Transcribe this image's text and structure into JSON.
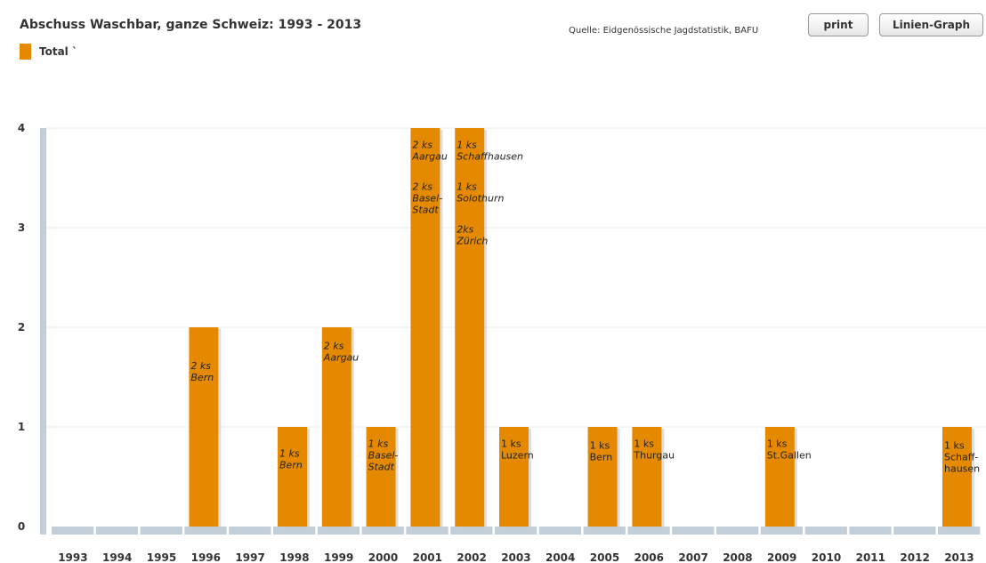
{
  "header": {
    "title": "Abschuss Waschbar, ganze Schweiz: 1993 - 2013",
    "source": "Quelle: Eidgenössische Jagdstatistik, BAFU",
    "print_label": "print",
    "graph_label": "Linien-Graph"
  },
  "chart_data": {
    "type": "bar",
    "title": "Abschuss Waschbar, ganze Schweiz: 1993 - 2013",
    "xlabel": "",
    "ylabel": "",
    "ylim": [
      0,
      4
    ],
    "y_ticks": [
      "0",
      "1",
      "2",
      "3",
      "4"
    ],
    "grid": true,
    "legend": "top-left",
    "bar_color": "#e58a00",
    "axis_color": "#c2cfd9",
    "categories": [
      "1993",
      "1994",
      "1995",
      "1996",
      "1997",
      "1998",
      "1999",
      "2000",
      "2001",
      "2002",
      "2003",
      "2004",
      "2005",
      "2006",
      "2007",
      "2008",
      "2009",
      "2010",
      "2011",
      "2012",
      "2013"
    ],
    "series": [
      {
        "name": "Total `",
        "values": [
          0,
          0,
          0,
          2,
          0,
          1,
          2,
          1,
          4,
          4,
          1,
          0,
          1,
          1,
          0,
          0,
          1,
          0,
          0,
          0,
          1
        ]
      }
    ],
    "annotations": [
      {
        "category": "1996",
        "value": 1.58,
        "lines": [
          "2 ks",
          "Bern"
        ],
        "italic": true
      },
      {
        "category": "1998",
        "value": 0.7,
        "lines": [
          "1 ks",
          "Bern"
        ],
        "italic": true
      },
      {
        "category": "1999",
        "value": 1.78,
        "lines": [
          "2 ks",
          "Aargau"
        ],
        "italic": true
      },
      {
        "category": "2000",
        "value": 0.8,
        "lines": [
          "1 ks",
          "Basel-",
          "Stadt"
        ],
        "italic": true
      },
      {
        "category": "2001",
        "value": 3.8,
        "lines": [
          "2 ks",
          "Aargau"
        ],
        "italic": true
      },
      {
        "category": "2001",
        "value": 3.38,
        "lines": [
          "2 ks",
          "Basel-",
          "Stadt"
        ],
        "italic": true
      },
      {
        "category": "2002",
        "value": 3.8,
        "lines": [
          "1 ks",
          "Schaffhausen"
        ],
        "italic": true
      },
      {
        "category": "2002",
        "value": 3.38,
        "lines": [
          "1 ks",
          "Solothurn"
        ],
        "italic": true
      },
      {
        "category": "2002",
        "value": 2.95,
        "lines": [
          "2ks",
          "Zürich"
        ],
        "italic": true
      },
      {
        "category": "2003",
        "value": 0.8,
        "lines": [
          "1 ks",
          "Luzern"
        ],
        "italic": false
      },
      {
        "category": "2005",
        "value": 0.78,
        "lines": [
          "1 ks",
          "Bern"
        ],
        "italic": false
      },
      {
        "category": "2006",
        "value": 0.8,
        "lines": [
          "1 ks",
          "Thurgau"
        ],
        "italic": false
      },
      {
        "category": "2009",
        "value": 0.8,
        "lines": [
          "1 ks",
          "St.Gallen"
        ],
        "italic": false
      },
      {
        "category": "2013",
        "value": 0.78,
        "lines": [
          "1 ks",
          "Schaff-",
          "hausen"
        ],
        "italic": false
      }
    ]
  }
}
